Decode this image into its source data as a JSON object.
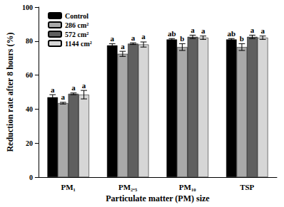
{
  "chart_data": {
    "type": "bar",
    "x_label": "Particulate matter (PM) size",
    "y_label": "Reduction rate after 8 hours (%)",
    "categories": [
      "PM₁",
      "PM₂.₅",
      "PM₁₀",
      "TSP"
    ],
    "series": [
      {
        "name": "Control",
        "color": "#000000",
        "values": [
          47,
          77.5,
          81,
          81
        ],
        "errors": [
          1.5,
          1,
          0.5,
          0.5
        ],
        "letters": [
          "a",
          "a",
          "ab",
          "ab"
        ]
      },
      {
        "name": "286 cm²",
        "color": "#a9a9a9",
        "values": [
          43.5,
          72.5,
          76.5,
          76.5
        ],
        "errors": [
          0.5,
          1.5,
          2,
          2
        ],
        "letters": [
          "a",
          "a",
          "b",
          "b"
        ]
      },
      {
        "name": "572 cm²",
        "color": "#5f5f5f",
        "values": [
          49,
          78.5,
          82.5,
          82.5
        ],
        "errors": [
          0.5,
          0.5,
          1,
          1
        ],
        "letters": [
          "a",
          "a",
          "a",
          "a"
        ]
      },
      {
        "name": "1144 cm²",
        "color": "#d6d6d6",
        "values": [
          48.5,
          78,
          82,
          82
        ],
        "errors": [
          2.5,
          1.5,
          1,
          1
        ],
        "letters": [
          "a",
          "a",
          "a",
          "a"
        ]
      }
    ],
    "ylim": [
      0,
      100
    ],
    "yticks": [
      0,
      20,
      40,
      60,
      80,
      100
    ],
    "legend": "top-left",
    "grid": false
  }
}
